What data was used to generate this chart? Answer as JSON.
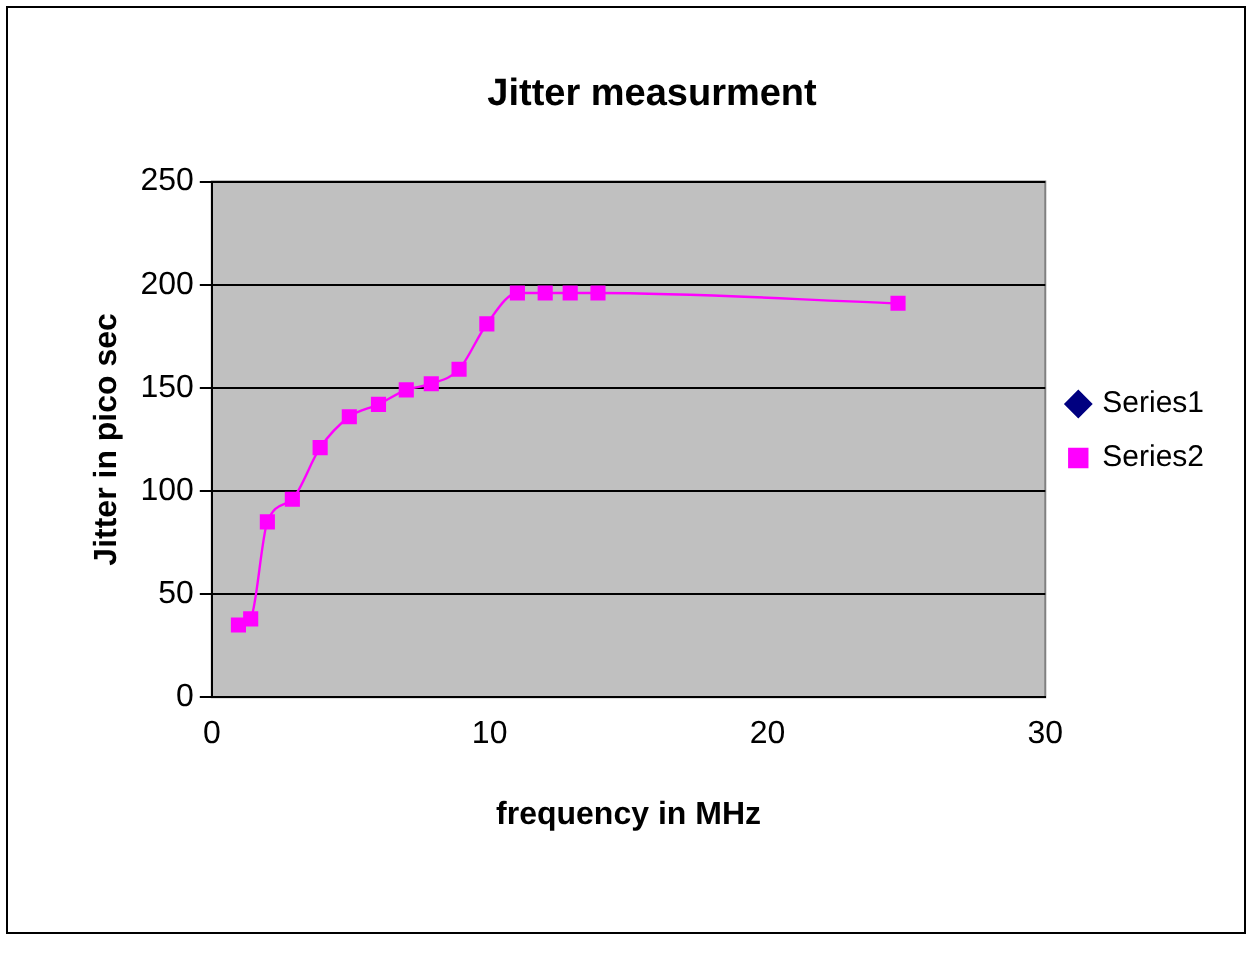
{
  "chart_data": {
    "type": "line",
    "title": "Jitter measurment",
    "xlabel": "frequency in MHz",
    "ylabel": "Jitter in pico sec",
    "xlim": [
      0,
      30
    ],
    "xticks": [
      0,
      10,
      20,
      30
    ],
    "ylim": [
      0,
      250
    ],
    "yticks": [
      0,
      50,
      100,
      150,
      200,
      250
    ],
    "grid": "y",
    "legend": "right",
    "series": [
      {
        "name": "Series1",
        "color": "#000080",
        "marker": "diamond"
      },
      {
        "name": "Series2",
        "color": "#ff00ff",
        "marker": "square",
        "x": [
          0.96,
          1.4,
          2.0,
          2.9,
          3.9,
          4.95,
          6.0,
          7.0,
          7.9,
          8.9,
          9.9,
          11.0,
          12.0,
          12.9,
          13.9,
          24.7
        ],
        "values": [
          35,
          38,
          85,
          96,
          121,
          136,
          142,
          149,
          152,
          159,
          181,
          196,
          196,
          196,
          196,
          191
        ]
      }
    ]
  }
}
